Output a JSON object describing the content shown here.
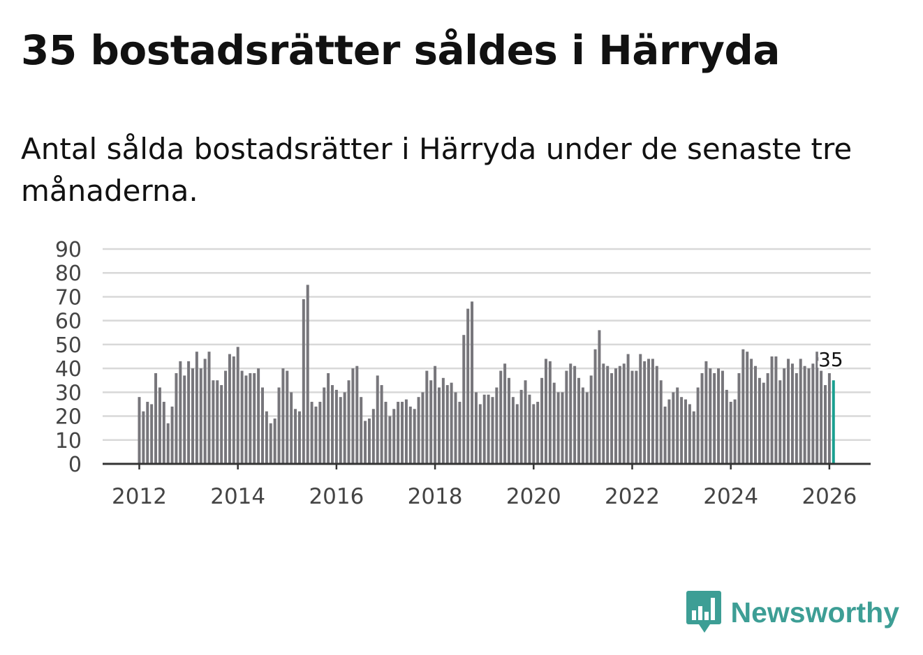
{
  "header": {
    "title": "35 bostadsrätter såldes i Härryda",
    "subtitle": "Antal sålda bostadsrätter i Härryda under de senaste tre månaderna."
  },
  "brand": {
    "name": "Newsworthy",
    "icon": "newsworthy-logo-icon",
    "color": "#3d9e95"
  },
  "chart_data": {
    "type": "bar",
    "title": "",
    "xlabel": "",
    "ylabel": "",
    "ylim": [
      0,
      90
    ],
    "yticks": [
      0,
      10,
      20,
      30,
      40,
      50,
      60,
      70,
      80,
      90
    ],
    "xticks": [
      "2012",
      "2014",
      "2016",
      "2018",
      "2020",
      "2022",
      "2024",
      "2026"
    ],
    "grid": true,
    "bar_color": "#77767b",
    "highlight_color": "#1aa090",
    "start": "2012-01",
    "end": "2026-01",
    "values": [
      28,
      22,
      26,
      25,
      38,
      32,
      26,
      17,
      24,
      38,
      43,
      37,
      43,
      40,
      47,
      40,
      44,
      47,
      35,
      35,
      33,
      39,
      46,
      45,
      49,
      39,
      37,
      38,
      38,
      40,
      32,
      22,
      17,
      19,
      32,
      40,
      39,
      30,
      23,
      22,
      69,
      75,
      26,
      24,
      26,
      32,
      38,
      33,
      31,
      28,
      30,
      35,
      40,
      41,
      28,
      18,
      19,
      23,
      37,
      33,
      26,
      20,
      23,
      26,
      26,
      27,
      24,
      23,
      28,
      30,
      39,
      35,
      41,
      32,
      36,
      33,
      34,
      30,
      26,
      54,
      65,
      68,
      30,
      25,
      29,
      29,
      28,
      32,
      39,
      42,
      36,
      28,
      25,
      31,
      35,
      29,
      25,
      26,
      36,
      44,
      43,
      34,
      30,
      30,
      39,
      42,
      41,
      36,
      32,
      30,
      37,
      48,
      56,
      42,
      41,
      38,
      40,
      41,
      42,
      46,
      39,
      39,
      46,
      43,
      44,
      44,
      41,
      35,
      24,
      27,
      30,
      32,
      28,
      27,
      25,
      22,
      32,
      38,
      43,
      40,
      38,
      40,
      39,
      31,
      26,
      27,
      38,
      48,
      47,
      44,
      41,
      36,
      34,
      38,
      45,
      45,
      35,
      40,
      44,
      42,
      38,
      44,
      41,
      40,
      42,
      47,
      39,
      33,
      38,
      35
    ],
    "annotation": {
      "text": "35",
      "x": "2026-01",
      "y": 35
    }
  }
}
